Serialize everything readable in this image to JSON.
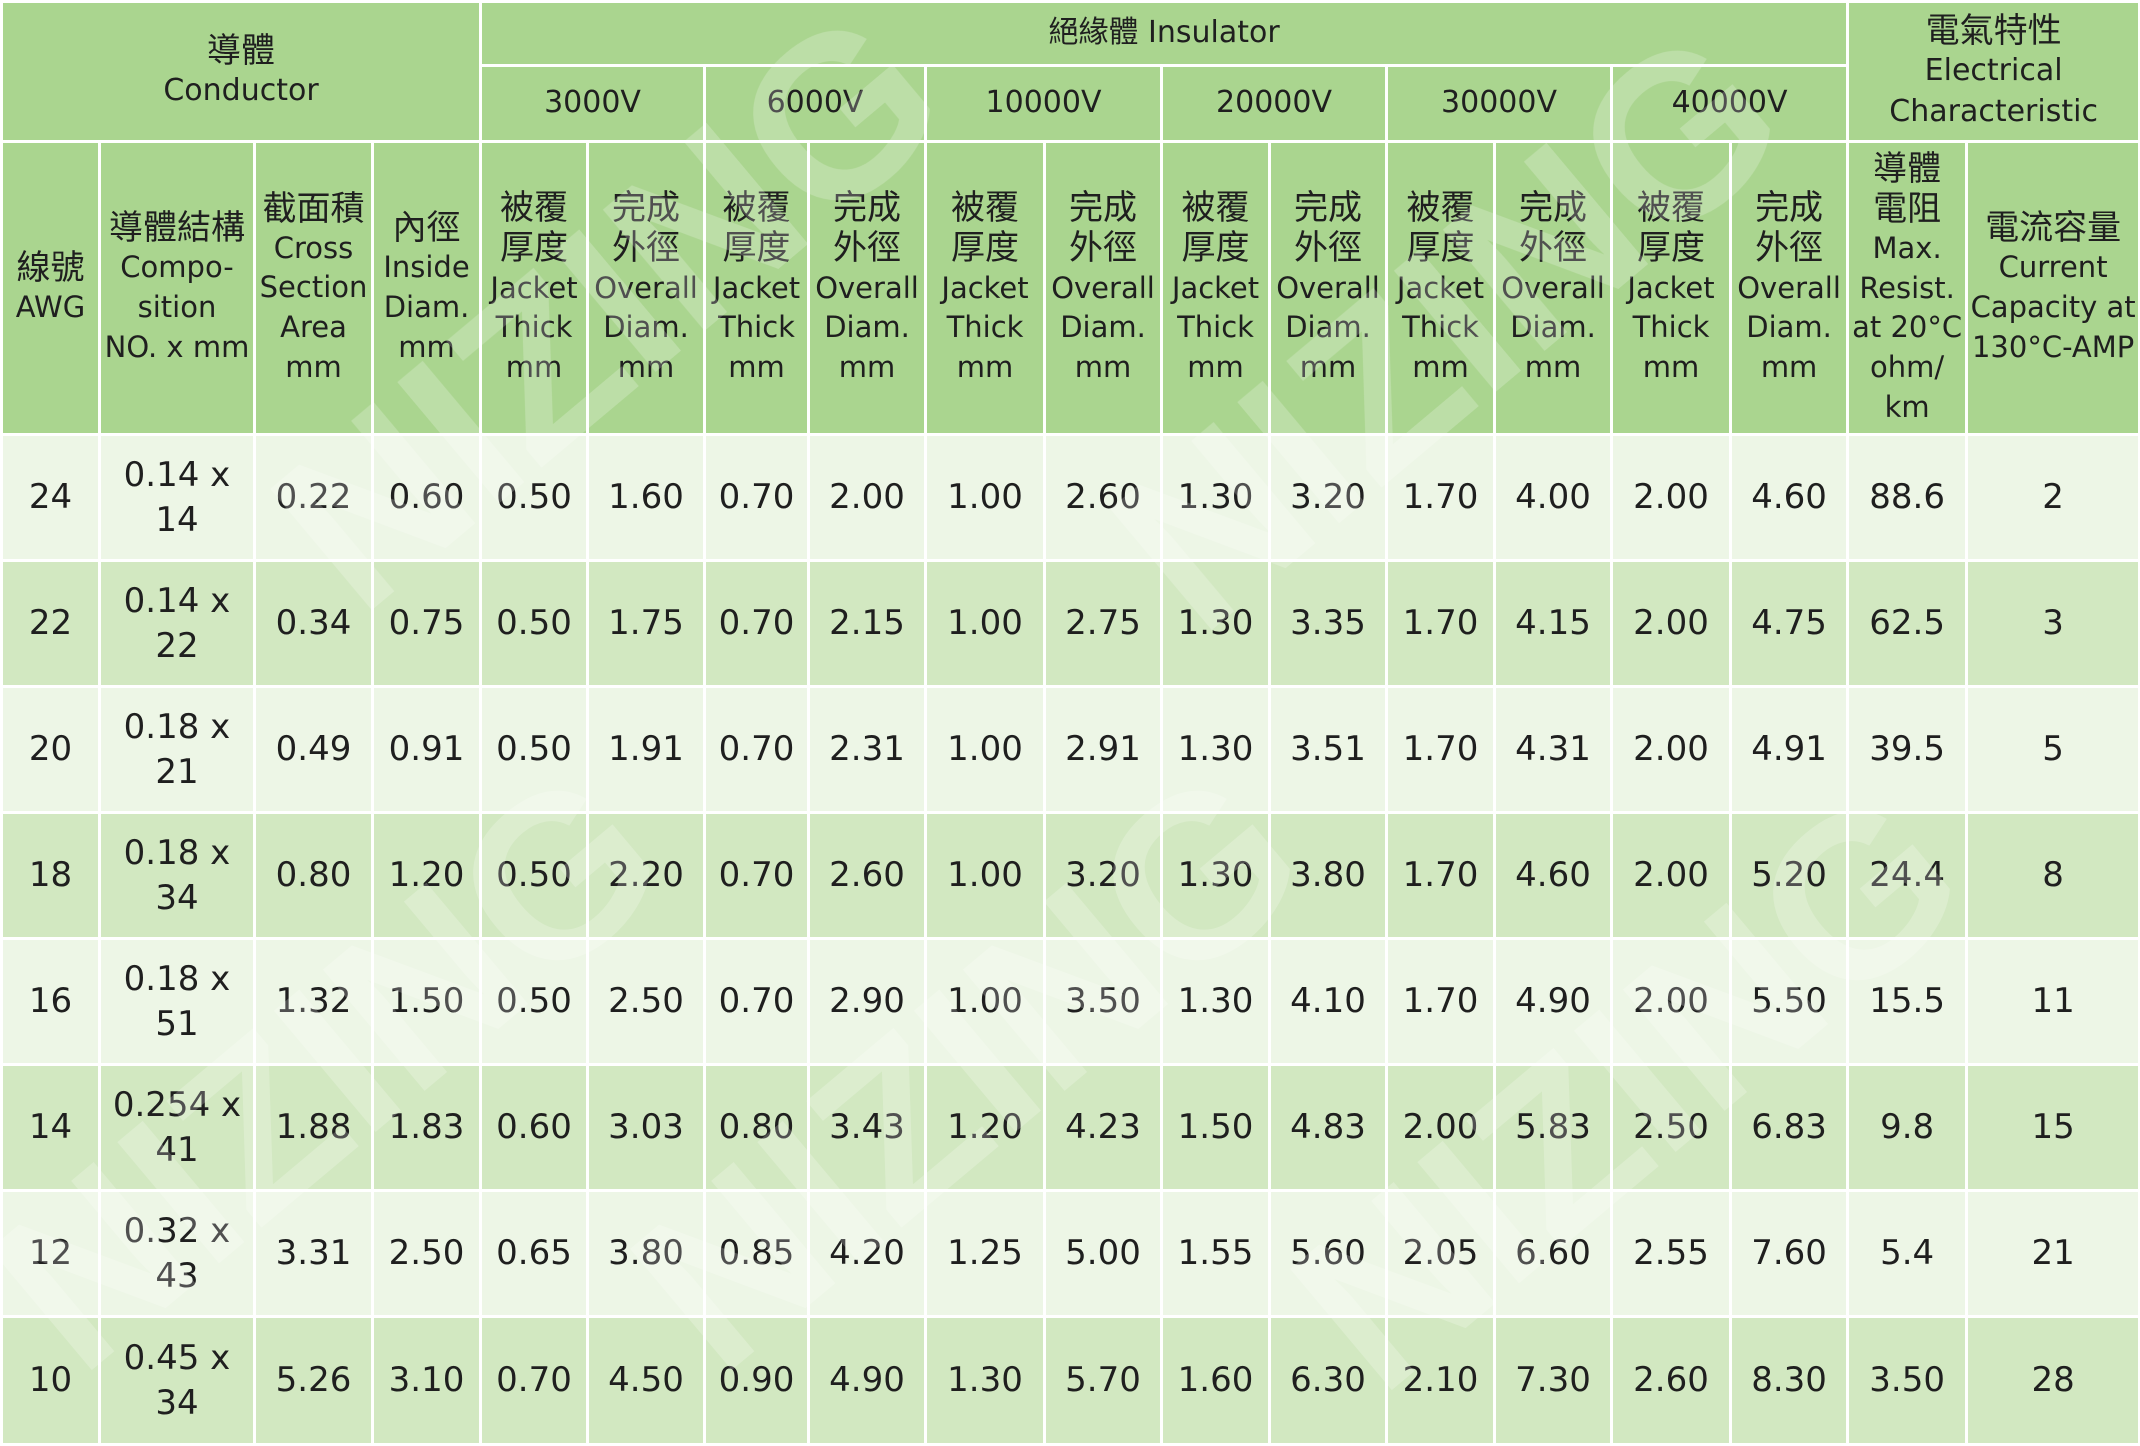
{
  "header": {
    "conductor": {
      "zh": "導體",
      "en": "Conductor"
    },
    "insulator": "絕緣體 Insulator",
    "electrical": {
      "zh": "電氣特性",
      "en": "Electrical Characteristic"
    },
    "voltages": [
      "3000V",
      "6000V",
      "10000V",
      "20000V",
      "30000V",
      "40000V"
    ],
    "columns": {
      "awg": {
        "zh": "線號",
        "en": "AWG"
      },
      "composition": {
        "zh": "導體結構",
        "en1": "Compo-",
        "en2": "sition",
        "en3": "NO. x mm"
      },
      "cross_section": {
        "zh": "截面積",
        "en1": "Cross",
        "en2": "Section",
        "en3": "Area",
        "en4": "mm"
      },
      "inside_diam": {
        "zh": "內徑",
        "en1": "Inside",
        "en2": "Diam.",
        "en3": "mm"
      },
      "jacket": {
        "zh1": "被覆",
        "zh2": "厚度",
        "en1": "Jacket",
        "en2": "Thick",
        "en3": "mm"
      },
      "overall": {
        "zh1": "完成",
        "zh2": "外徑",
        "en1": "Overall",
        "en2": "Diam.",
        "en3": "mm"
      },
      "resist": {
        "zh1": "導體",
        "zh2": "電阻",
        "en1": "Max.",
        "en2": "Resist.",
        "en3": "at 20°C",
        "en4": "ohm/",
        "en5": "km"
      },
      "current": {
        "zh": "電流容量",
        "en1": "Current",
        "en2": "Capacity at",
        "en3": "130°C-AMP"
      }
    }
  },
  "rows": [
    [
      "24",
      "0.14 x 14",
      "0.22",
      "0.60",
      "0.50",
      "1.60",
      "0.70",
      "2.00",
      "1.00",
      "2.60",
      "1.30",
      "3.20",
      "1.70",
      "4.00",
      "2.00",
      "4.60",
      "88.6",
      "2"
    ],
    [
      "22",
      "0.14 x 22",
      "0.34",
      "0.75",
      "0.50",
      "1.75",
      "0.70",
      "2.15",
      "1.00",
      "2.75",
      "1.30",
      "3.35",
      "1.70",
      "4.15",
      "2.00",
      "4.75",
      "62.5",
      "3"
    ],
    [
      "20",
      "0.18 x 21",
      "0.49",
      "0.91",
      "0.50",
      "1.91",
      "0.70",
      "2.31",
      "1.00",
      "2.91",
      "1.30",
      "3.51",
      "1.70",
      "4.31",
      "2.00",
      "4.91",
      "39.5",
      "5"
    ],
    [
      "18",
      "0.18 x 34",
      "0.80",
      "1.20",
      "0.50",
      "2.20",
      "0.70",
      "2.60",
      "1.00",
      "3.20",
      "1.30",
      "3.80",
      "1.70",
      "4.60",
      "2.00",
      "5.20",
      "24.4",
      "8"
    ],
    [
      "16",
      "0.18 x 51",
      "1.32",
      "1.50",
      "0.50",
      "2.50",
      "0.70",
      "2.90",
      "1.00",
      "3.50",
      "1.30",
      "4.10",
      "1.70",
      "4.90",
      "2.00",
      "5.50",
      "15.5",
      "11"
    ],
    [
      "14",
      "0.254 x 41",
      "1.88",
      "1.83",
      "0.60",
      "3.03",
      "0.80",
      "3.43",
      "1.20",
      "4.23",
      "1.50",
      "4.83",
      "2.00",
      "5.83",
      "2.50",
      "6.83",
      "9.8",
      "15"
    ],
    [
      "12",
      "0.32 x 43",
      "3.31",
      "2.50",
      "0.65",
      "3.80",
      "0.85",
      "4.20",
      "1.25",
      "5.00",
      "1.55",
      "5.60",
      "2.05",
      "6.60",
      "2.55",
      "7.60",
      "5.4",
      "21"
    ],
    [
      "10",
      "0.45 x 34",
      "5.26",
      "3.10",
      "0.70",
      "4.50",
      "0.90",
      "4.90",
      "1.30",
      "5.70",
      "1.60",
      "6.30",
      "2.10",
      "7.30",
      "2.60",
      "8.30",
      "3.50",
      "28"
    ]
  ],
  "watermark": "NIZING",
  "colors": {
    "header": "#aad58f",
    "row_light": "#edf6e6",
    "row_dark": "#d2e8c1"
  }
}
